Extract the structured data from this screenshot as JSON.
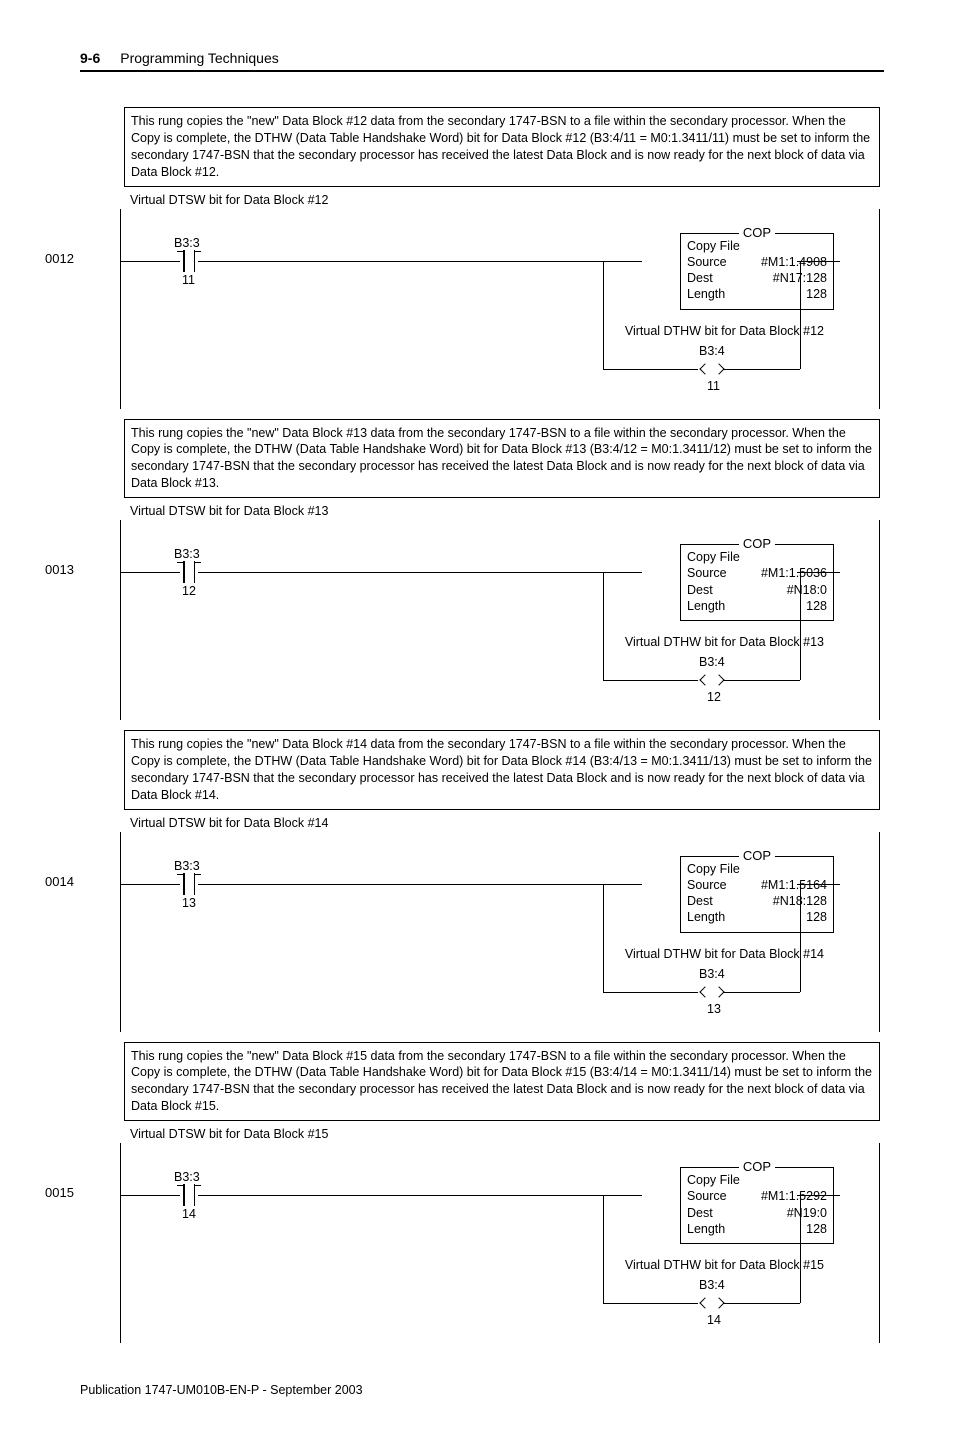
{
  "header": {
    "page_num": "9-6",
    "title": "Programming Techniques"
  },
  "footer": "Publication 1747-UM010B-EN-P - September 2003",
  "cop_header": "COP",
  "cop_line1": "Copy File",
  "cop_source_lbl": "Source",
  "cop_dest_lbl": "Dest",
  "cop_len_lbl": "Length",
  "rungs": [
    {
      "num": "0012",
      "comment": "This rung copies the \"new\" Data Block #12 data from the secondary 1747-BSN to a file within the secondary processor. When the Copy is complete, the DTHW (Data Table Handshake Word) bit for Data Block #12 (B3:4/11 = M0:1.3411/11) must be set to inform the secondary 1747-BSN that the secondary processor has received the latest Data Block and is now ready for the next block of data via Data Block #12.",
      "dtsw_label": "Virtual DTSW bit for Data Block #12",
      "contact_addr": "B3:3",
      "contact_bit": "11",
      "cop_source": "#M1:1.4908",
      "cop_dest": "#N17:128",
      "cop_len": "128",
      "dthw_label": "Virtual DTHW bit for Data Block #12",
      "coil_addr": "B3:4",
      "coil_bit": "11"
    },
    {
      "num": "0013",
      "comment": "This rung copies the \"new\" Data Block #13 data from the secondary 1747-BSN to a file within the secondary processor. When the Copy is complete, the DTHW (Data Table Handshake Word) bit for Data Block #13 (B3:4/12 = M0:1.3411/12) must be set to inform the secondary 1747-BSN that the secondary processor has received the latest Data Block and is now ready for the next block of data via Data Block #13.",
      "dtsw_label": "Virtual DTSW bit for Data Block #13",
      "contact_addr": "B3:3",
      "contact_bit": "12",
      "cop_source": "#M1:1.5036",
      "cop_dest": "#N18:0",
      "cop_len": "128",
      "dthw_label": "Virtual DTHW bit for Data Block #13",
      "coil_addr": "B3:4",
      "coil_bit": "12"
    },
    {
      "num": "0014",
      "comment": "This rung copies the \"new\" Data Block #14 data from the secondary 1747-BSN to a file within the secondary processor. When the Copy is complete, the DTHW (Data Table Handshake Word) bit for Data Block #14 (B3:4/13 = M0:1.3411/13) must be set to inform the secondary 1747-BSN that the secondary processor has received the latest Data Block and is now ready for the next block of data via Data Block #14.",
      "dtsw_label": "Virtual DTSW bit for Data Block #14",
      "contact_addr": "B3:3",
      "contact_bit": "13",
      "cop_source": "#M1:1.5164",
      "cop_dest": "#N18:128",
      "cop_len": "128",
      "dthw_label": "Virtual DTHW bit for Data Block #14",
      "coil_addr": "B3:4",
      "coil_bit": "13"
    },
    {
      "num": "0015",
      "comment": "This rung copies the \"new\" Data Block #15 data from the secondary 1747-BSN to a file within the secondary processor. When the Copy is complete, the DTHW (Data Table Handshake Word) bit for Data Block #15 (B3:4/14 = M0:1.3411/14) must be set to inform the secondary 1747-BSN that the secondary processor has received the latest Data Block and is now ready for the next block of data via Data Block #15.",
      "dtsw_label": "Virtual DTSW bit for Data Block #15",
      "contact_addr": "B3:3",
      "contact_bit": "14",
      "cop_source": "#M1:1.5292",
      "cop_dest": "#N19:0",
      "cop_len": "128",
      "dthw_label": "Virtual DTHW bit for Data Block #15",
      "coil_addr": "B3:4",
      "coil_bit": "14"
    }
  ]
}
